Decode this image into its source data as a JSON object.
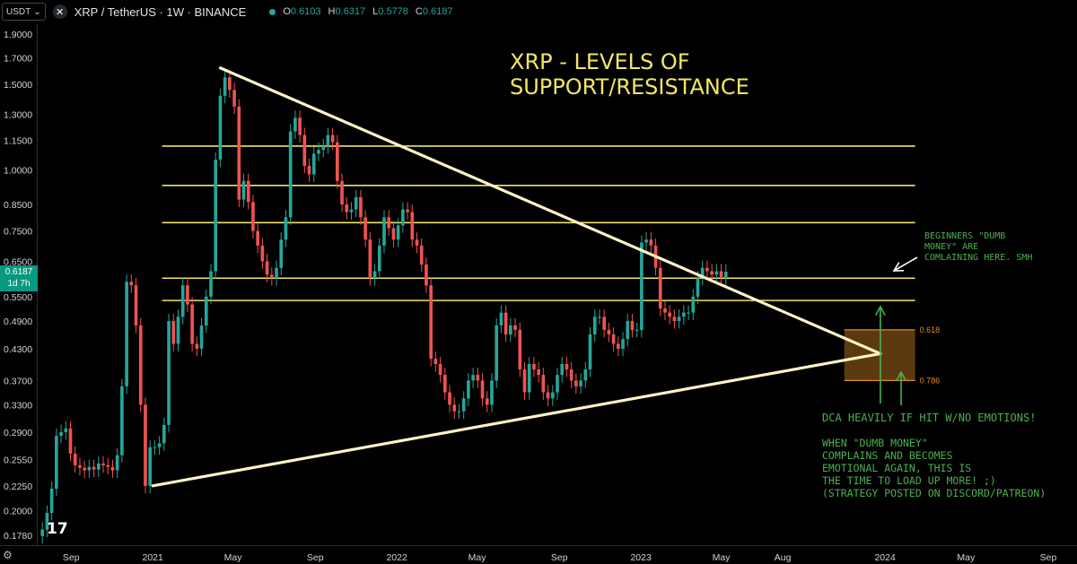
{
  "header": {
    "currency": "USDT",
    "currency_caret": "⌄",
    "logo_glyph": "✕",
    "symbol": "XRP / TetherUS · 1W · BINANCE",
    "ohlc": [
      {
        "k": "O",
        "v": "0.6103"
      },
      {
        "k": "H",
        "v": "0.6317"
      },
      {
        "k": "L",
        "v": "0.5778"
      },
      {
        "k": "C",
        "v": "0.6187"
      }
    ]
  },
  "price_tag": {
    "price": "0.6187",
    "countdown": "1d 7h"
  },
  "watermark": "17",
  "settings_icon": "⚙",
  "colors": {
    "up": "#26a69a",
    "down": "#ef5350",
    "level": "#f2e36b",
    "trend": "#fff3c4",
    "title": "#f5e663",
    "note": "#4caf50",
    "fib_fill": "#6b4412",
    "fib_line": "#e0882e",
    "axis_text": "#d1d4dc"
  },
  "chart_data": {
    "type": "candlestick",
    "title": "XRP - LEVELS OF\nSUPPORT/RESISTANCE",
    "y_scale": "log",
    "ylim": [
      0.17,
      2.0
    ],
    "y_ticks": [
      "1.9000",
      "1.7000",
      "1.5000",
      "1.3000",
      "1.1500",
      "1.0000",
      "0.8500",
      "0.7500",
      "0.6500",
      "0.5500",
      "0.4900",
      "0.4300",
      "0.3700",
      "0.3300",
      "0.2900",
      "0.2550",
      "0.2250",
      "0.2000",
      "0.1780"
    ],
    "x_range": [
      "2020-07-13",
      "2024-10-14"
    ],
    "x_ticks": [
      {
        "label": "Sep",
        "date": "2020-09-01"
      },
      {
        "label": "2021",
        "date": "2021-01-01"
      },
      {
        "label": "May",
        "date": "2021-05-01"
      },
      {
        "label": "Sep",
        "date": "2021-09-01"
      },
      {
        "label": "2022",
        "date": "2022-01-01"
      },
      {
        "label": "May",
        "date": "2022-05-01"
      },
      {
        "label": "Sep",
        "date": "2022-09-01"
      },
      {
        "label": "2023",
        "date": "2023-01-01"
      },
      {
        "label": "May",
        "date": "2023-05-01"
      },
      {
        "label": "Aug",
        "date": "2023-08-01"
      },
      {
        "label": "2024",
        "date": "2024-01-01"
      },
      {
        "label": "May",
        "date": "2024-05-01"
      },
      {
        "label": "Sep",
        "date": "2024-09-01"
      }
    ],
    "candles_start": "2020-07-20",
    "candles_interval": "1W",
    "closes": [
      0.183,
      0.198,
      0.222,
      0.285,
      0.29,
      0.295,
      0.262,
      0.248,
      0.245,
      0.242,
      0.246,
      0.243,
      0.25,
      0.248,
      0.246,
      0.242,
      0.26,
      0.36,
      0.59,
      0.58,
      0.48,
      0.33,
      0.225,
      0.27,
      0.27,
      0.275,
      0.3,
      0.49,
      0.44,
      0.5,
      0.58,
      0.53,
      0.44,
      0.43,
      0.48,
      0.55,
      0.62,
      1.05,
      1.42,
      1.55,
      1.46,
      1.35,
      0.87,
      0.95,
      0.86,
      0.75,
      0.7,
      0.65,
      0.61,
      0.6,
      0.63,
      0.72,
      0.8,
      1.2,
      1.28,
      1.18,
      1.02,
      0.98,
      1.08,
      1.1,
      1.12,
      1.18,
      1.14,
      0.95,
      0.85,
      0.82,
      0.83,
      0.88,
      0.8,
      0.72,
      0.6,
      0.62,
      0.7,
      0.8,
      0.76,
      0.72,
      0.77,
      0.83,
      0.82,
      0.72,
      0.7,
      0.64,
      0.58,
      0.41,
      0.4,
      0.38,
      0.35,
      0.33,
      0.32,
      0.32,
      0.34,
      0.37,
      0.38,
      0.37,
      0.34,
      0.33,
      0.37,
      0.48,
      0.51,
      0.46,
      0.48,
      0.47,
      0.39,
      0.35,
      0.4,
      0.39,
      0.38,
      0.35,
      0.34,
      0.35,
      0.38,
      0.4,
      0.39,
      0.37,
      0.36,
      0.37,
      0.39,
      0.46,
      0.5,
      0.5,
      0.47,
      0.46,
      0.44,
      0.43,
      0.45,
      0.49,
      0.47,
      0.47,
      0.71,
      0.72,
      0.7,
      0.63,
      0.52,
      0.51,
      0.5,
      0.49,
      0.5,
      0.51,
      0.51,
      0.55,
      0.6,
      0.63,
      0.62,
      0.61,
      0.62,
      0.6,
      0.6187
    ],
    "levels": [
      1.12,
      0.93,
      0.78,
      0.6,
      0.54
    ],
    "trendlines": [
      {
        "from": {
          "date": "2021-04-12",
          "price": 1.62
        },
        "to": {
          "date": "2023-12-25",
          "price": 0.42
        }
      },
      {
        "from": {
          "date": "2021-01-01",
          "price": 0.225
        },
        "to": {
          "date": "2023-12-25",
          "price": 0.42
        }
      }
    ],
    "fib_zone": {
      "from_date": "2023-11-01",
      "to_date": "2024-02-15",
      "top": 0.47,
      "bottom": 0.37,
      "top_label": "0.618",
      "bottom_label": "0.786"
    },
    "annotations": {
      "beginners": "BEGINNERS \"DUMB\nMONEY\" ARE\nCOMLAINING HERE. SMH",
      "dca": "DCA HEAVILY IF HIT W/NO EMOTIONS!",
      "when": "WHEN \"DUMB MONEY\"\nCOMPLAINS AND BECOMES\nEMOTIONAL AGAIN, THIS IS\nTHE TIME TO LOAD UP MORE! ;)\n(STRATEGY POSTED ON DISCORD/PATREON)"
    }
  }
}
